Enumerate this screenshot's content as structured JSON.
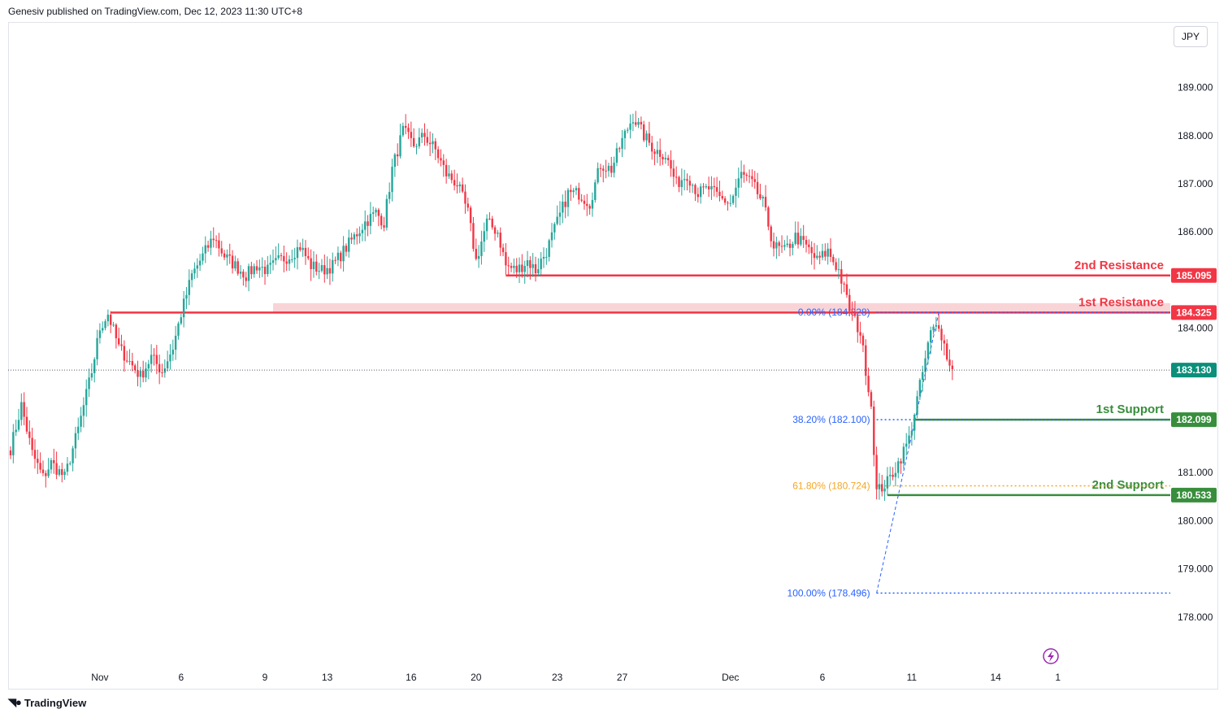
{
  "header": {
    "published": "Genesiv published on TradingView.com, Dec 12, 2023 11:30 UTC+8"
  },
  "currency": "JPY",
  "footer": {
    "brand": "TradingView",
    "logo_icon": "tradingview-logo-icon"
  },
  "colors": {
    "up": "#26a69a",
    "down": "#f23645",
    "resistance": "#f23645",
    "support": "#388e3c",
    "fib_blue": "#2962ff",
    "fib_gold": "#f5a623",
    "resistance_zone": "#f8c9cd"
  },
  "chart_data": {
    "type": "candlestick",
    "ylim": [
      177.2,
      189.7
    ],
    "y_ticks": [
      "189.000",
      "188.000",
      "187.000",
      "186.000",
      "184.000",
      "181.000",
      "180.000",
      "179.000",
      "178.000"
    ],
    "x_ticks": [
      {
        "label": "Nov",
        "bar": 33
      },
      {
        "label": "6",
        "bar": 63
      },
      {
        "label": "9",
        "bar": 94
      },
      {
        "label": "13",
        "bar": 117
      },
      {
        "label": "16",
        "bar": 148
      },
      {
        "label": "20",
        "bar": 172
      },
      {
        "label": "23",
        "bar": 202
      },
      {
        "label": "27",
        "bar": 226
      },
      {
        "label": "Dec",
        "bar": 266
      },
      {
        "label": "6",
        "bar": 300
      },
      {
        "label": "11",
        "bar": 333
      },
      {
        "label": "14",
        "bar": 364
      },
      {
        "label": "1",
        "bar": 387
      }
    ],
    "last_price": "183.130",
    "last_price_value": 183.13,
    "price_levels": [
      {
        "label": "2nd Resistance",
        "tag": "185.095",
        "value": 185.095,
        "kind": "resistance",
        "from_bar": 183
      },
      {
        "label": "1st Resistance",
        "tag": "184.325",
        "value": 184.325,
        "kind": "resistance",
        "from_bar": 37
      },
      {
        "label": "1st Support",
        "tag": "182.099",
        "value": 182.099,
        "kind": "support",
        "from_bar": 334
      },
      {
        "label": "2nd Support",
        "tag": "180.533",
        "value": 180.533,
        "kind": "support",
        "from_bar": 324
      }
    ],
    "resistance_zone": {
      "from_bar": 97,
      "low": 184.325,
      "high": 184.52
    },
    "fib_levels": [
      {
        "label": "0.00% (184.328)",
        "value": 184.328,
        "color": "blue"
      },
      {
        "label": "38.20% (182.100)",
        "value": 182.1,
        "color": "blue"
      },
      {
        "label": "61.80% (180.724)",
        "value": 180.724,
        "color": "gold"
      },
      {
        "label": "100.00% (178.496)",
        "value": 178.496,
        "color": "blue"
      }
    ],
    "fib_from_bar": 320,
    "fib_trend": {
      "from": [
        320,
        178.496
      ],
      "to": [
        343,
        184.328
      ]
    },
    "anchors": [
      [
        0,
        181.5
      ],
      [
        4,
        182.4
      ],
      [
        8,
        181.4
      ],
      [
        12,
        180.9
      ],
      [
        15,
        181.2
      ],
      [
        20,
        180.9
      ],
      [
        25,
        181.9
      ],
      [
        30,
        183.1
      ],
      [
        33,
        184.0
      ],
      [
        36,
        184.3
      ],
      [
        40,
        183.6
      ],
      [
        44,
        183.3
      ],
      [
        48,
        183.0
      ],
      [
        52,
        183.4
      ],
      [
        56,
        183.1
      ],
      [
        60,
        183.6
      ],
      [
        63,
        184.3
      ],
      [
        67,
        185.1
      ],
      [
        71,
        185.5
      ],
      [
        75,
        185.9
      ],
      [
        79,
        185.5
      ],
      [
        83,
        185.3
      ],
      [
        87,
        185.1
      ],
      [
        91,
        185.3
      ],
      [
        95,
        185.2
      ],
      [
        99,
        185.4
      ],
      [
        103,
        185.5
      ],
      [
        107,
        185.7
      ],
      [
        111,
        185.3
      ],
      [
        115,
        185.2
      ],
      [
        119,
        185.3
      ],
      [
        123,
        185.6
      ],
      [
        127,
        185.9
      ],
      [
        131,
        186.2
      ],
      [
        135,
        186.4
      ],
      [
        138,
        186.2
      ],
      [
        141,
        187.3
      ],
      [
        145,
        188.1
      ],
      [
        149,
        187.8
      ],
      [
        153,
        188.0
      ],
      [
        157,
        187.7
      ],
      [
        161,
        187.2
      ],
      [
        165,
        187.0
      ],
      [
        169,
        186.4
      ],
      [
        172,
        185.4
      ],
      [
        176,
        186.2
      ],
      [
        180,
        186.0
      ],
      [
        183,
        185.3
      ],
      [
        187,
        185.2
      ],
      [
        191,
        185.4
      ],
      [
        194,
        185.2
      ],
      [
        198,
        185.6
      ],
      [
        202,
        186.2
      ],
      [
        206,
        186.8
      ],
      [
        210,
        186.8
      ],
      [
        214,
        186.6
      ],
      [
        218,
        187.4
      ],
      [
        222,
        187.3
      ],
      [
        226,
        187.9
      ],
      [
        230,
        188.4
      ],
      [
        234,
        188.0
      ],
      [
        238,
        187.7
      ],
      [
        242,
        187.6
      ],
      [
        246,
        187.0
      ],
      [
        250,
        187.2
      ],
      [
        254,
        186.8
      ],
      [
        258,
        186.9
      ],
      [
        262,
        186.7
      ],
      [
        266,
        186.6
      ],
      [
        270,
        187.2
      ],
      [
        274,
        187.0
      ],
      [
        278,
        186.6
      ],
      [
        282,
        185.7
      ],
      [
        286,
        185.6
      ],
      [
        290,
        185.9
      ],
      [
        294,
        185.7
      ],
      [
        298,
        185.4
      ],
      [
        302,
        185.6
      ],
      [
        306,
        185.2
      ],
      [
        310,
        184.4
      ],
      [
        314,
        183.9
      ],
      [
        318,
        182.4
      ],
      [
        320,
        180.6
      ],
      [
        324,
        180.8
      ],
      [
        328,
        181.2
      ],
      [
        332,
        181.7
      ],
      [
        336,
        182.8
      ],
      [
        340,
        183.9
      ],
      [
        343,
        184.1
      ],
      [
        347,
        183.2
      ],
      [
        348,
        183.15
      ]
    ]
  }
}
